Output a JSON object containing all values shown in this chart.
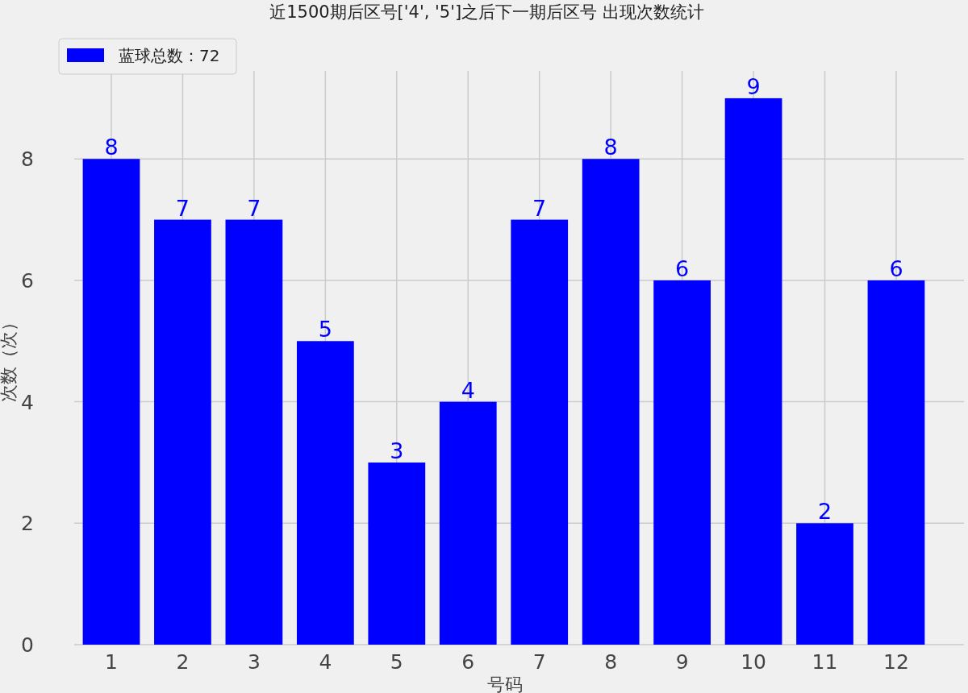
{
  "chart_data": {
    "type": "bar",
    "title": "近1500期后区号['4', '5']之后下一期后区号 出现次数统计",
    "xlabel": "号码",
    "ylabel": "次数（次）",
    "categories": [
      "1",
      "2",
      "3",
      "4",
      "5",
      "6",
      "7",
      "8",
      "9",
      "10",
      "11",
      "12"
    ],
    "series": [
      {
        "name": "蓝球总数：72",
        "color": "#0000ff",
        "values": [
          8,
          7,
          7,
          5,
          3,
          4,
          7,
          8,
          6,
          9,
          2,
          6
        ]
      }
    ],
    "ylim": [
      0,
      9.45
    ],
    "yticks": [
      0,
      2,
      4,
      6,
      8
    ],
    "grid": true,
    "legend": "top left",
    "data_labels": true
  }
}
